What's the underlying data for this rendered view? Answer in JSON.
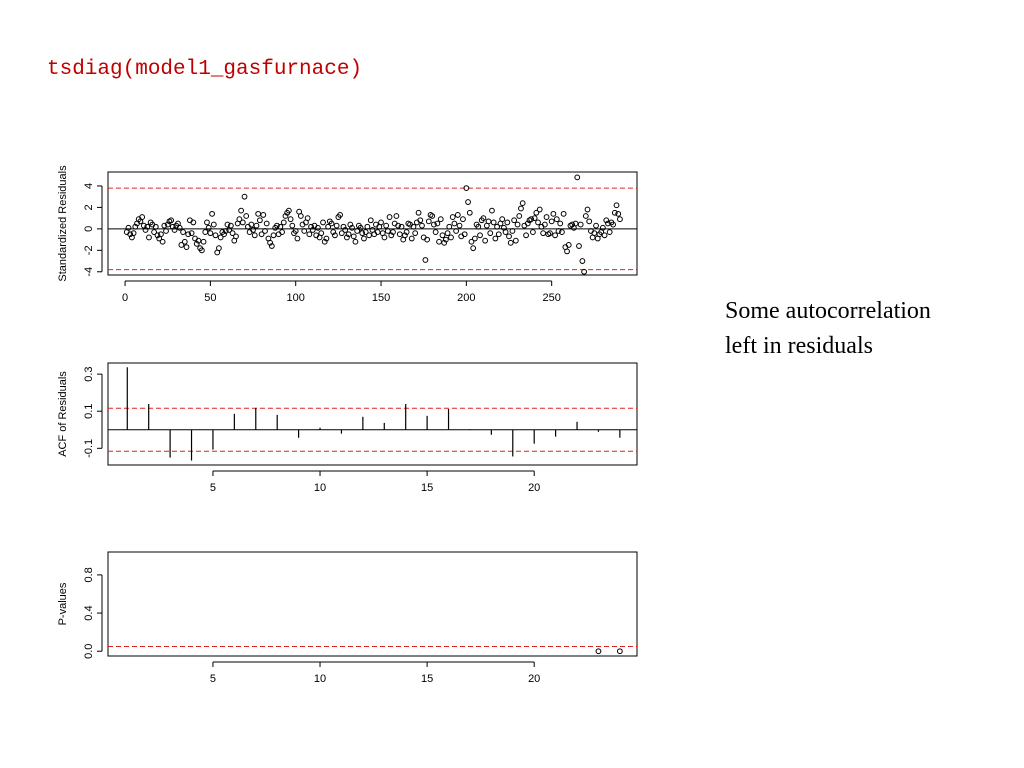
{
  "title": "tsdiag(model1_gasfurnace)",
  "annotation": [
    "Some autocorrelation",
    "left in residuals"
  ],
  "chart_data": [
    {
      "type": "scatter",
      "y_label": "Standardized Residuals",
      "color": "#000000",
      "bound_color": "#e02020",
      "xlim": [
        -10,
        300
      ],
      "ylim": [
        -4.3,
        5.3
      ],
      "xticks": [
        0,
        50,
        100,
        150,
        200,
        250
      ],
      "yticks": [
        -4,
        -2,
        0,
        2,
        4
      ],
      "hline": 0,
      "bounds": [
        -3.8,
        3.8
      ],
      "x": [
        1,
        2,
        3,
        4,
        5,
        6,
        7,
        8,
        9,
        10,
        11,
        12,
        13,
        14,
        15,
        16,
        17,
        18,
        19,
        20,
        21,
        22,
        23,
        24,
        25,
        26,
        27,
        28,
        29,
        30,
        31,
        32,
        33,
        34,
        35,
        36,
        37,
        38,
        39,
        40,
        41,
        42,
        43,
        44,
        45,
        46,
        47,
        48,
        49,
        50,
        51,
        52,
        53,
        54,
        55,
        56,
        57,
        58,
        59,
        60,
        61,
        62,
        63,
        64,
        65,
        66,
        67,
        68,
        69,
        70,
        71,
        72,
        73,
        74,
        75,
        76,
        77,
        78,
        79,
        80,
        81,
        82,
        83,
        84,
        85,
        86,
        87,
        88,
        89,
        90,
        91,
        92,
        93,
        94,
        95,
        96,
        97,
        98,
        99,
        100,
        101,
        102,
        103,
        104,
        105,
        106,
        107,
        108,
        109,
        110,
        111,
        112,
        113,
        114,
        115,
        116,
        117,
        118,
        119,
        120,
        121,
        122,
        123,
        124,
        125,
        126,
        127,
        128,
        129,
        130,
        131,
        132,
        133,
        134,
        135,
        136,
        137,
        138,
        139,
        140,
        141,
        142,
        143,
        144,
        145,
        146,
        147,
        148,
        149,
        150,
        151,
        152,
        153,
        154,
        155,
        156,
        157,
        158,
        159,
        160,
        161,
        162,
        163,
        164,
        165,
        166,
        167,
        168,
        169,
        170,
        171,
        172,
        173,
        174,
        175,
        176,
        177,
        178,
        179,
        180,
        181,
        182,
        183,
        184,
        185,
        186,
        187,
        188,
        189,
        190,
        191,
        192,
        193,
        194,
        195,
        196,
        197,
        198,
        199,
        200,
        201,
        202,
        203,
        204,
        205,
        206,
        207,
        208,
        209,
        210,
        211,
        212,
        213,
        214,
        215,
        216,
        217,
        218,
        219,
        220,
        221,
        222,
        223,
        224,
        225,
        226,
        227,
        228,
        229,
        230,
        231,
        232,
        233,
        234,
        235,
        236,
        237,
        238,
        239,
        240,
        241,
        242,
        243,
        244,
        245,
        246,
        247,
        248,
        249,
        250,
        251,
        252,
        253,
        254,
        255,
        256,
        257,
        258,
        259,
        260,
        261,
        262,
        263,
        264,
        265,
        266,
        267,
        268,
        269,
        270,
        271,
        272,
        273,
        274,
        275,
        276,
        277,
        278,
        279,
        280,
        281,
        282,
        283,
        284,
        285,
        286,
        287,
        288,
        289,
        290
      ],
      "values": [
        -0.3,
        0.1,
        -0.5,
        -0.8,
        -0.4,
        0.2,
        0.5,
        0.9,
        0.7,
        1.1,
        0.3,
        -0.1,
        0.2,
        -0.8,
        0.6,
        0.4,
        -0.3,
        0.2,
        -0.6,
        -0.9,
        -0.5,
        -1.2,
        0.3,
        -0.2,
        0.4,
        0.7,
        0.8,
        0.2,
        -0.1,
        0.3,
        0.5,
        0.1,
        -1.5,
        -0.3,
        -1.2,
        -1.7,
        -0.5,
        0.8,
        -0.4,
        0.6,
        -0.9,
        -1.4,
        -1.1,
        -1.8,
        -2.0,
        -1.2,
        -0.3,
        0.6,
        0.1,
        -0.4,
        1.4,
        0.4,
        -0.6,
        -2.2,
        -1.8,
        -0.8,
        -0.3,
        -0.5,
        -0.2,
        0.4,
        -0.1,
        0.3,
        -0.4,
        -1.1,
        -0.7,
        0.5,
        0.9,
        1.7,
        0.6,
        3.0,
        1.2,
        0.2,
        -0.3,
        0.4,
        -0.1,
        -0.6,
        0.3,
        1.4,
        0.8,
        -0.5,
        1.3,
        -0.2,
        0.5,
        -0.9,
        -1.3,
        -1.6,
        -0.6,
        0.1,
        0.3,
        -0.5,
        0.2,
        -0.3,
        0.6,
        1.2,
        1.5,
        1.7,
        0.9,
        0.3,
        -0.4,
        -0.2,
        -0.9,
        1.6,
        1.2,
        0.4,
        -0.2,
        0.6,
        1.0,
        -0.5,
        0.2,
        -0.1,
        0.3,
        -0.6,
        0.1,
        -0.8,
        -0.4,
        0.6,
        -1.2,
        -0.9,
        0.2,
        0.7,
        0.5,
        -0.3,
        -0.6,
        0.3,
        1.1,
        1.3,
        -0.4,
        0.2,
        -0.1,
        -0.8,
        -0.5,
        0.4,
        0.1,
        -0.7,
        -1.2,
        -0.2,
        0.3,
        0.1,
        -0.4,
        -0.9,
        -0.3,
        0.2,
        -0.6,
        0.8,
        -0.1,
        -0.5,
        0.4,
        -0.3,
        0.2,
        0.6,
        -0.4,
        -0.8,
        0.3,
        -0.2,
        1.1,
        -0.6,
        -0.3,
        0.5,
        1.2,
        0.3,
        -0.5,
        0.2,
        -1.0,
        -0.6,
        -0.3,
        0.5,
        0.4,
        -0.9,
        0.2,
        -0.4,
        0.6,
        1.5,
        0.8,
        0.3,
        -0.8,
        -2.9,
        -1.0,
        0.7,
        1.3,
        1.2,
        0.4,
        -0.3,
        0.5,
        -1.2,
        0.9,
        -0.6,
        -1.3,
        -1.0,
        -0.4,
        0.2,
        -0.8,
        1.1,
        0.5,
        -0.2,
        1.3,
        0.3,
        -0.7,
        0.9,
        -0.5,
        3.8,
        2.5,
        1.5,
        -1.2,
        -1.8,
        -0.9,
        0.4,
        0.2,
        -0.6,
        0.8,
        1.0,
        -1.1,
        0.3,
        0.7,
        -0.4,
        1.7,
        0.6,
        -0.9,
        0.2,
        -0.5,
        0.5,
        0.9,
        0.1,
        -0.3,
        0.6,
        -0.7,
        -1.3,
        -0.2,
        0.8,
        -1.1,
        0.4,
        1.2,
        1.9,
        2.4,
        0.3,
        -0.6,
        0.5,
        0.8,
        0.9,
        -0.3,
        1.0,
        1.5,
        0.6,
        1.8,
        0.2,
        -0.4,
        0.4,
        1.1,
        -0.5,
        -0.4,
        0.7,
        1.4,
        -0.6,
        0.9,
        -0.2,
        0.5,
        -0.3,
        1.4,
        -1.7,
        -2.1,
        -1.5,
        0.3,
        0.4,
        0.1,
        0.5,
        4.8,
        -1.6,
        0.4,
        -3.0,
        -4.0,
        1.2,
        1.8,
        0.7,
        -0.2,
        -0.8,
        -0.4,
        0.3,
        -0.9,
        -0.5,
        -0.3,
        0.1,
        -0.6,
        0.8,
        0.5,
        -0.3,
        0.6,
        0.4,
        1.5,
        2.2,
        1.4,
        0.9
      ]
    },
    {
      "type": "stem",
      "y_label": "ACF of Residuals",
      "color": "#000000",
      "bound_color": "#e02020",
      "xlim": [
        0.1,
        24.8
      ],
      "ylim": [
        -0.19,
        0.36
      ],
      "xticks": [
        5,
        10,
        15,
        20
      ],
      "yticks": [
        -0.1,
        0.1,
        0.3
      ],
      "hline": 0,
      "bounds": [
        -0.116,
        0.116
      ],
      "x": [
        1,
        2,
        3,
        4,
        5,
        6,
        7,
        8,
        9,
        10,
        11,
        12,
        13,
        14,
        15,
        16,
        17,
        18,
        19,
        20,
        21,
        22,
        23,
        24
      ],
      "values": [
        0.337,
        0.139,
        -0.15,
        -0.166,
        -0.107,
        0.086,
        0.118,
        0.08,
        -0.043,
        0.011,
        -0.021,
        0.07,
        0.037,
        0.139,
        0.075,
        0.112,
        0.003,
        -0.027,
        -0.144,
        -0.075,
        -0.037,
        0.043,
        -0.011,
        -0.043
      ]
    },
    {
      "type": "scatter",
      "y_label": "P-values",
      "color": "#000000",
      "bound_color": "#e02020",
      "xlim": [
        0.1,
        24.8
      ],
      "ylim": [
        -0.05,
        1.04
      ],
      "xticks": [
        5,
        10,
        15,
        20
      ],
      "yticks": [
        {
          "value": 0,
          "label": "0.0"
        },
        0.4,
        0.8
      ],
      "bounds": [
        0.05
      ],
      "x": [
        23,
        24
      ],
      "values": [
        0,
        0
      ]
    }
  ]
}
